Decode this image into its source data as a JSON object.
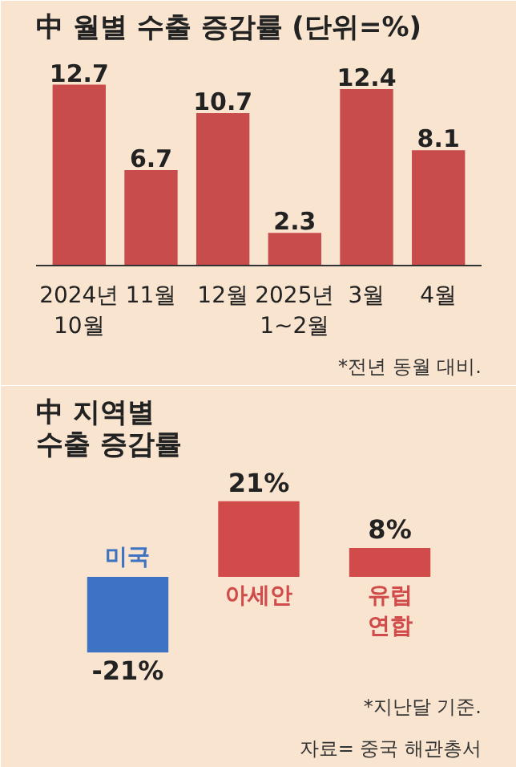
{
  "chart_data": [
    {
      "type": "bar",
      "title": "中 월별 수출 증감률 (단위=%)",
      "categories": [
        "2024년\n10월",
        "11월",
        "12월",
        "2025년\n1~2월",
        "3월",
        "4월"
      ],
      "values": [
        12.7,
        6.7,
        10.7,
        2.3,
        12.4,
        8.1
      ],
      "color": "#c94c4c",
      "data_labels": true,
      "annotations": [
        "*전년 동월 대비."
      ]
    },
    {
      "type": "bar",
      "title": "中 지역별\n수출 증감률",
      "categories": [
        "미국",
        "아세안",
        "유럽\n연합"
      ],
      "values": [
        -21,
        21,
        8
      ],
      "colors": [
        "#3d73c2",
        "#d14b4b",
        "#d14b4b"
      ],
      "value_labels": [
        "-21%",
        "21%",
        "8%"
      ],
      "annotations": [
        "*지난달 기준.",
        "자료= 중국 해관총서"
      ]
    }
  ]
}
